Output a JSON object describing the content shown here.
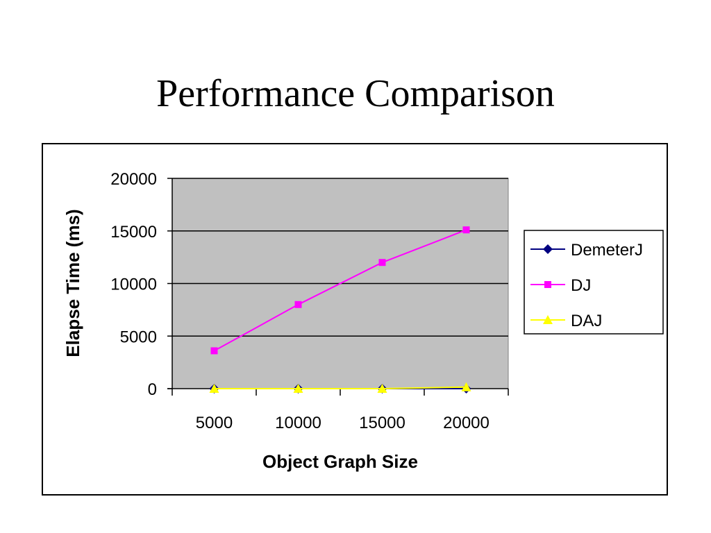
{
  "slide": {
    "title": "Performance Comparison"
  },
  "chart_data": {
    "type": "line",
    "title": "",
    "xlabel": "Object Graph Size",
    "ylabel": "Elapse Time (ms)",
    "categories": [
      "5000",
      "10000",
      "15000",
      "20000"
    ],
    "ylim": [
      0,
      20000
    ],
    "yticks": [
      "0",
      "5000",
      "10000",
      "15000",
      "20000"
    ],
    "grid": true,
    "legend_position": "right",
    "series": [
      {
        "name": "DemeterJ",
        "values": [
          0,
          0,
          0,
          0
        ],
        "color": "#000080",
        "marker": "diamond"
      },
      {
        "name": "DJ",
        "values": [
          3600,
          8000,
          12000,
          15100
        ],
        "color": "#FF00FF",
        "marker": "square"
      },
      {
        "name": "DAJ",
        "values": [
          0,
          0,
          0,
          150
        ],
        "color": "#FFFF00",
        "marker": "triangle"
      }
    ],
    "colors": {
      "plot_background": "#C0C0C0",
      "gridline": "#000000"
    }
  }
}
